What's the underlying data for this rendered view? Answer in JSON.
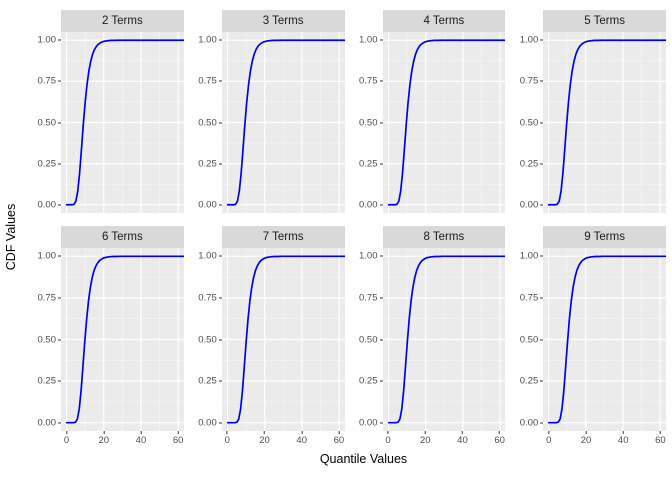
{
  "figure": {
    "y_axis_title": "CDF Values",
    "x_axis_title": "Quantile Values",
    "colors": {
      "curve": "#0000EE",
      "panel_background": "#EBEBEB",
      "strip_background": "#D9D9D9",
      "grid_major": "#FFFFFF",
      "grid_minor": "#FFFFFF",
      "tick_text": "#4D4D4D",
      "strip_text": "#1A1A1A",
      "axis_title_text": "#000000",
      "tick_mark": "#333333",
      "page_background": "#FFFFFF"
    }
  },
  "chart_data": {
    "type": "line",
    "title": "",
    "xlabel": "Quantile Values",
    "ylabel": "CDF Values",
    "legend": "none",
    "grid": true,
    "line_color": "#0000EE",
    "facet_layout": {
      "rows": 2,
      "cols": 4
    },
    "facets": [
      {
        "label": "2 Terms",
        "x_shift": 0
      },
      {
        "label": "3 Terms",
        "x_shift": 0.3
      },
      {
        "label": "4 Terms",
        "x_shift": 0.5
      },
      {
        "label": "5 Terms",
        "x_shift": 0.7
      },
      {
        "label": "6 Terms",
        "x_shift": 0.8
      },
      {
        "label": "7 Terms",
        "x_shift": 1.0
      },
      {
        "label": "8 Terms",
        "x_shift": 1.1
      },
      {
        "label": "9 Terms",
        "x_shift": 1.2
      }
    ],
    "x": [
      0,
      1,
      2,
      3,
      4,
      5,
      6,
      7,
      8,
      9,
      10,
      11,
      12,
      13,
      14,
      15,
      16,
      17,
      18,
      19,
      20,
      22,
      24,
      26,
      28,
      30,
      35,
      40,
      50,
      60,
      63
    ],
    "base_y": [
      0,
      0,
      0,
      0,
      0.003,
      0.022,
      0.082,
      0.192,
      0.337,
      0.489,
      0.624,
      0.732,
      0.814,
      0.873,
      0.915,
      0.943,
      0.962,
      0.975,
      0.983,
      0.989,
      0.993,
      0.997,
      0.999,
      0.999,
      1,
      1,
      1,
      1,
      1,
      1,
      1
    ],
    "xlim": [
      -3,
      63
    ],
    "ylim": [
      -0.05,
      1.05
    ],
    "x_breaks": [
      0,
      20,
      40,
      60
    ],
    "x_minor_breaks": [
      10,
      30,
      50
    ],
    "y_breaks": [
      1,
      0.75,
      0.5,
      0.25,
      0
    ],
    "y_minor_breaks": [
      0.125,
      0.375,
      0.625,
      0.875
    ],
    "x_tick_labels": [
      "0",
      "20",
      "40",
      "60"
    ],
    "y_tick_labels": [
      "1.00",
      "0.75",
      "0.50",
      "0.25",
      "0.00"
    ]
  }
}
